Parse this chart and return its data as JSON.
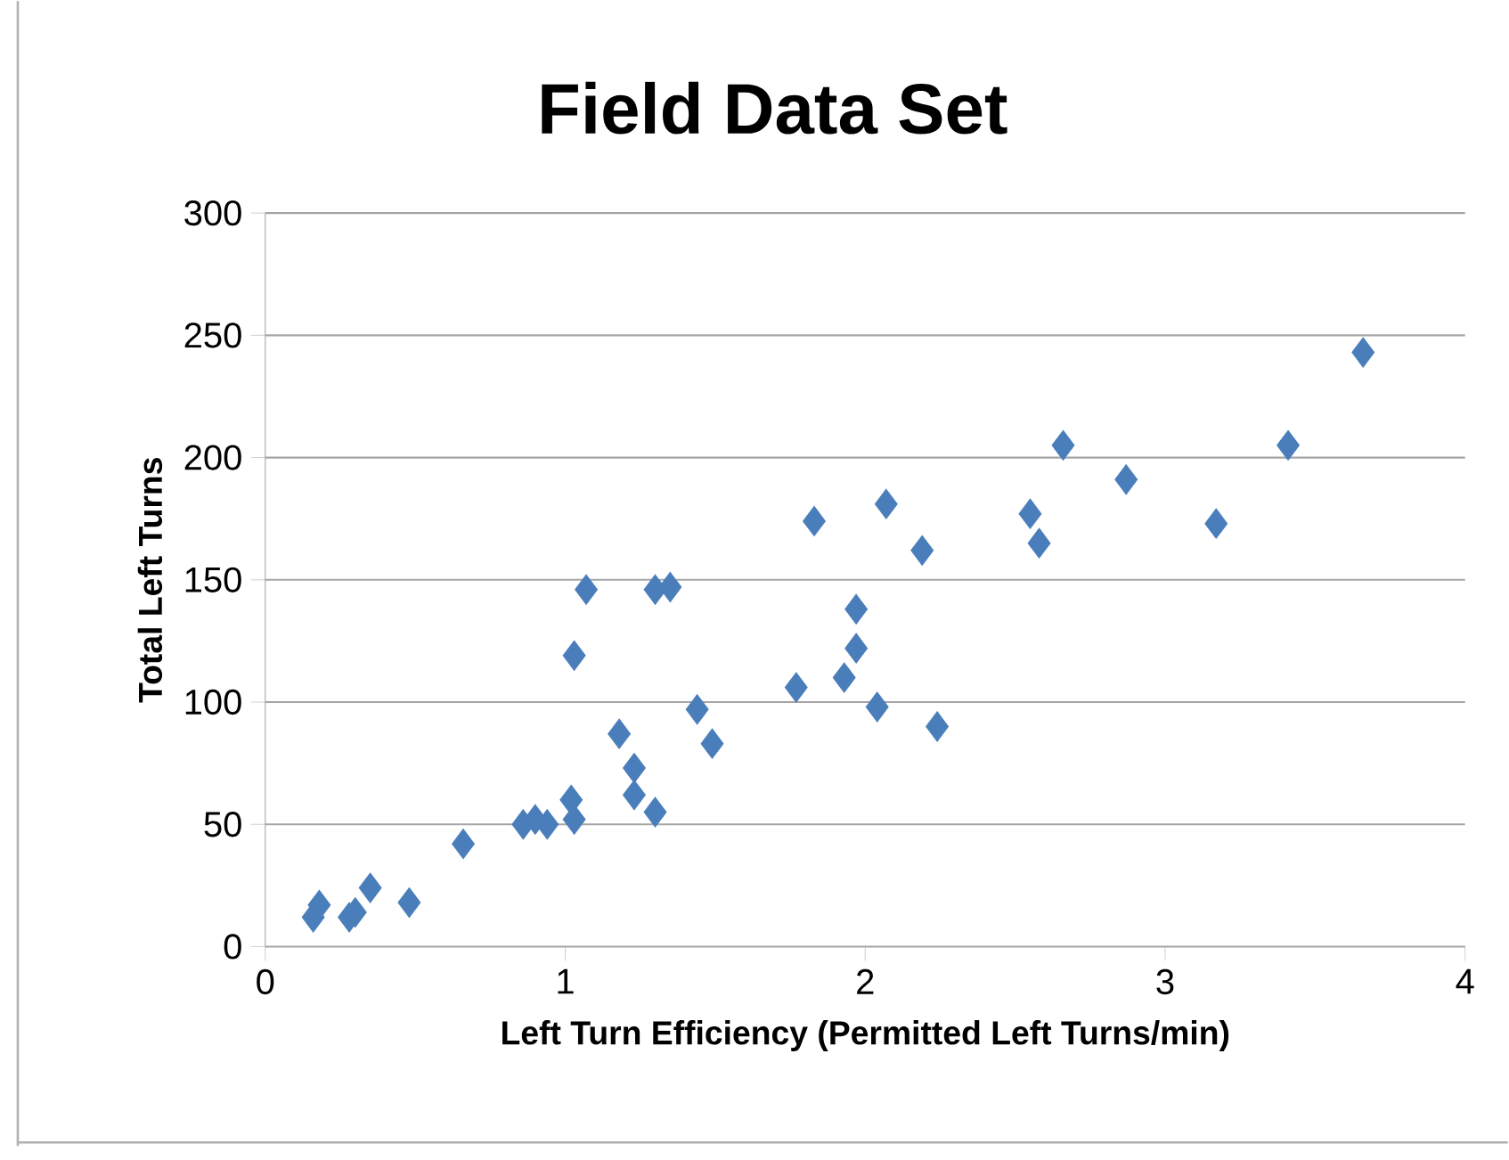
{
  "chart_data": {
    "type": "scatter",
    "title": "Field Data Set",
    "xlabel": "Left Turn Efficiency (Permitted Left Turns/min)",
    "ylabel": "Total Left Turns",
    "xlim": [
      0,
      4
    ],
    "xticks": [
      0,
      1,
      2,
      3,
      4
    ],
    "ylim": [
      0,
      300
    ],
    "yticks": [
      0,
      50,
      100,
      150,
      200,
      250,
      300
    ],
    "grid": "y",
    "marker": "diamond",
    "series": [
      {
        "color": "#4a7ebb",
        "x": [
          0.16,
          0.18,
          0.28,
          0.3,
          0.35,
          0.48,
          0.66,
          0.86,
          0.9,
          0.94,
          1.02,
          1.03,
          1.03,
          1.07,
          1.18,
          1.23,
          1.23,
          1.3,
          1.3,
          1.35,
          1.44,
          1.49,
          1.77,
          1.83,
          1.93,
          1.97,
          1.97,
          2.04,
          2.07,
          2.19,
          2.24,
          2.55,
          2.58,
          2.66,
          2.87,
          3.17,
          3.41,
          3.66
        ],
        "values": [
          12,
          17,
          12,
          14,
          24,
          18,
          42,
          50,
          52,
          50,
          60,
          52,
          119,
          146,
          87,
          73,
          62,
          55,
          146,
          147,
          97,
          83,
          106,
          174,
          110,
          122,
          138,
          98,
          181,
          162,
          90,
          177,
          165,
          205,
          191,
          173,
          205,
          243
        ]
      }
    ]
  }
}
